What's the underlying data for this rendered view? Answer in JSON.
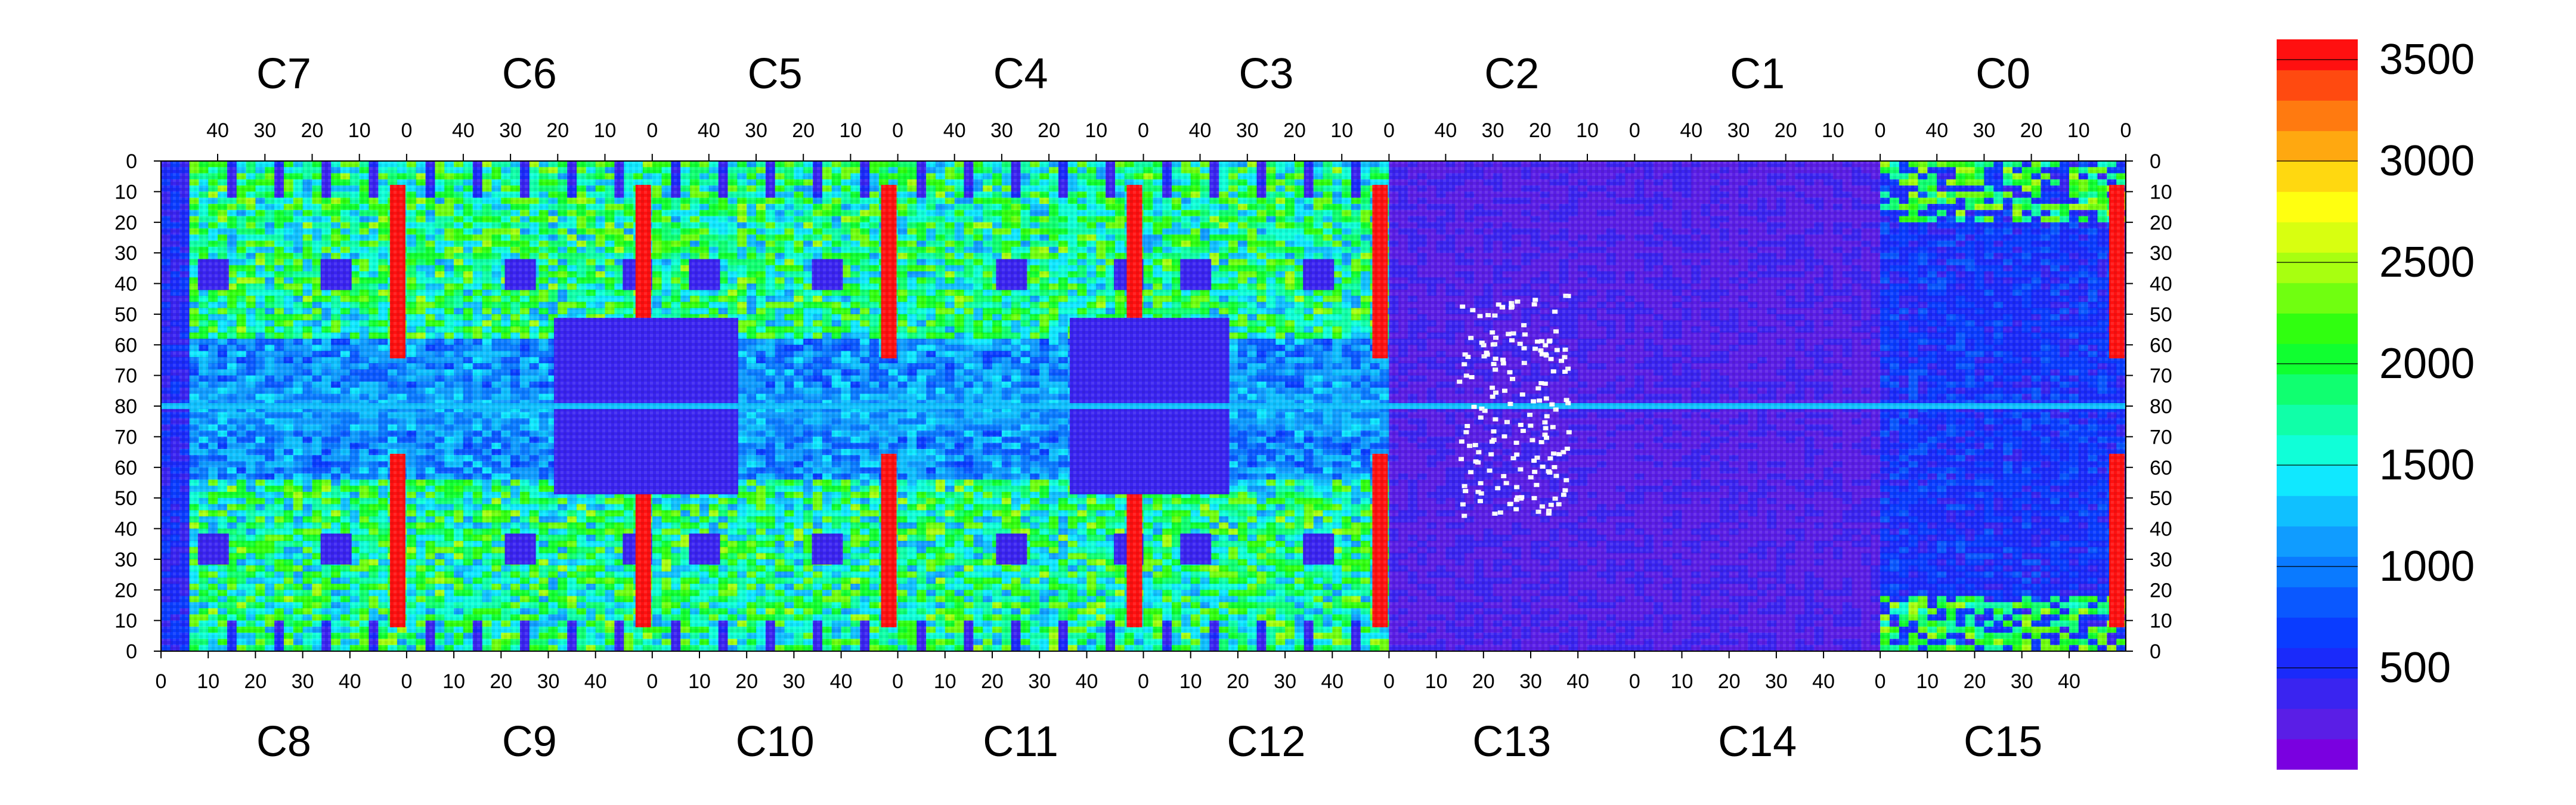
{
  "chart_data": {
    "type": "heatmap",
    "title": "",
    "top_chip_labels": [
      "C7",
      "C6",
      "C5",
      "C4",
      "C3",
      "C2",
      "C1",
      "C0"
    ],
    "bottom_chip_labels": [
      "C8",
      "C9",
      "C10",
      "C11",
      "C12",
      "C13",
      "C14",
      "C15"
    ],
    "top_x_ticks": [
      "40",
      "30",
      "20",
      "10",
      "0"
    ],
    "bottom_x_ticks": [
      "0",
      "10",
      "20",
      "30",
      "40"
    ],
    "columns_per_chip": 52,
    "y_ticks_top_half": [
      "0",
      "10",
      "20",
      "30",
      "40",
      "50",
      "60",
      "70",
      "80"
    ],
    "y_ticks_bottom_half": [
      "70",
      "60",
      "50",
      "40",
      "30",
      "20",
      "10",
      "0"
    ],
    "rows_per_half": 80,
    "grid": false,
    "colorbar": {
      "min": 0,
      "max": 3600,
      "ticks": [
        "500",
        "1000",
        "1500",
        "2000",
        "2500",
        "3000",
        "3500"
      ],
      "palette": [
        "#7a00e0",
        "#5a1ee6",
        "#3a24f0",
        "#1a2afa",
        "#0a3cff",
        "#0a58ff",
        "#0a7aff",
        "#109cff",
        "#10c0ff",
        "#10e8ff",
        "#10ffd8",
        "#10ffa8",
        "#10ff70",
        "#10ff30",
        "#30ff10",
        "#70ff10",
        "#a8ff10",
        "#d8ff10",
        "#ffff10",
        "#ffd810",
        "#ffa810",
        "#ff7a10",
        "#ff4a10",
        "#ff1010"
      ],
      "position": "right"
    },
    "regions": [
      {
        "area": "C7-C8 left low-occupancy strip",
        "value": 300
      },
      {
        "area": "chip edge columns (red)",
        "value": 3500
      },
      {
        "area": "chip bulk upper/lower bands",
        "value": 1600
      },
      {
        "area": "central row 80",
        "value": 900
      },
      {
        "area": "C13-C14 dead region",
        "value": 150
      },
      {
        "area": "C1-C0 / C14-C15 low region",
        "value": 400
      }
    ]
  }
}
